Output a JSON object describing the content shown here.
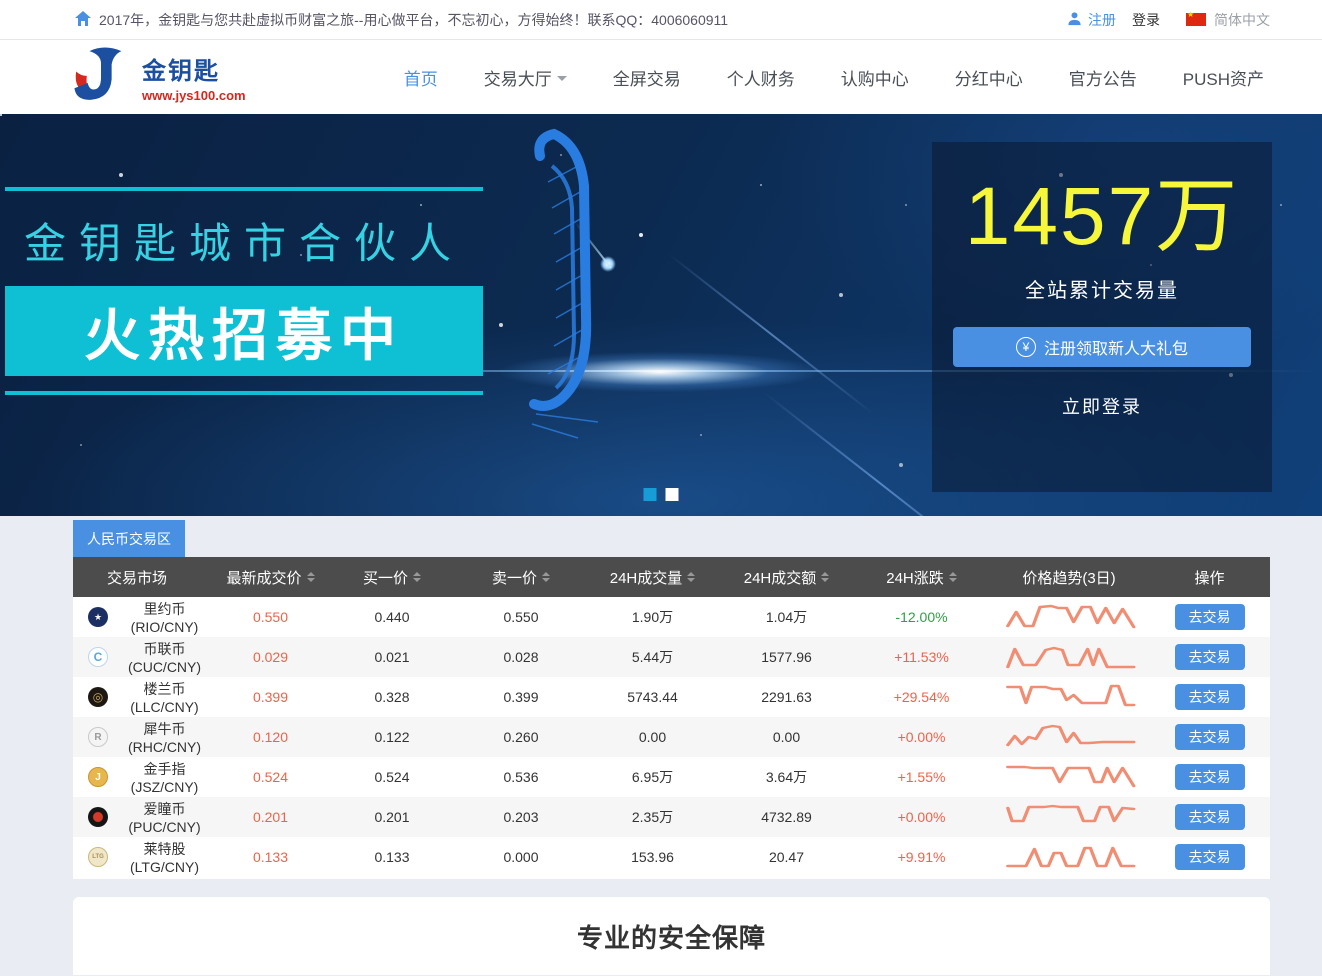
{
  "colors": {
    "accent": "#4a90e2",
    "cyan": "#0fc0d4",
    "cyan_text": "#35d2e4",
    "yellow": "#f6f63a",
    "up_orange": "#f0634a",
    "down_green": "#2fa045",
    "sparkline": "#f08d73",
    "header_bg": "#4c4c4c",
    "dot_active": "#189cd8"
  },
  "topbar": {
    "announcement": "2017年，金钥匙与您共赴虚拟币财富之旅--用心做平台，不忘初心，方得始终！联系QQ：4006060911",
    "register": "注册",
    "login": "登录",
    "language": "简体中文"
  },
  "nav": {
    "logo_title": "金钥匙",
    "logo_url": "www.jys100.com",
    "items": [
      {
        "label": "首页",
        "active": true,
        "dropdown": false
      },
      {
        "label": "交易大厅",
        "active": false,
        "dropdown": true
      },
      {
        "label": "全屏交易",
        "active": false,
        "dropdown": false
      },
      {
        "label": "个人财务",
        "active": false,
        "dropdown": false
      },
      {
        "label": "认购中心",
        "active": false,
        "dropdown": false
      },
      {
        "label": "分红中心",
        "active": false,
        "dropdown": false
      },
      {
        "label": "官方公告",
        "active": false,
        "dropdown": false
      },
      {
        "label": "PUSH资产",
        "active": false,
        "dropdown": false
      }
    ]
  },
  "banner": {
    "slogan_line1": "金钥匙城市合伙人",
    "slogan_line2": "火热招募中",
    "stat_value": "1457万",
    "stat_label": "全站累计交易量",
    "yen_symbol": "¥",
    "register_button": "注册领取新人大礼包",
    "login_link": "立即登录",
    "carousel": {
      "count": 2,
      "active_index": 0
    }
  },
  "market": {
    "tab": "人民币交易区",
    "action_label": "去交易",
    "columns": [
      {
        "label": "交易市场",
        "sortable": false
      },
      {
        "label": "最新成交价",
        "sortable": true
      },
      {
        "label": "买一价",
        "sortable": true
      },
      {
        "label": "卖一价",
        "sortable": true
      },
      {
        "label": "24H成交量",
        "sortable": true
      },
      {
        "label": "24H成交额",
        "sortable": true
      },
      {
        "label": "24H涨跌",
        "sortable": true
      },
      {
        "label": "价格趋势(3日)",
        "sortable": false
      },
      {
        "label": "操作",
        "sortable": false
      }
    ],
    "rows": [
      {
        "name": "里约币(RIO/CNY)",
        "icon": "rio",
        "icon_label": "★",
        "last": "0.550",
        "buy": "0.440",
        "sell": "0.550",
        "volume": "1.90万",
        "turnover": "1.04万",
        "change": "-12.00%",
        "direction": "down",
        "trend": [
          [
            2,
            26
          ],
          [
            8,
            12
          ],
          [
            14,
            26
          ],
          [
            20,
            26
          ],
          [
            25,
            7
          ],
          [
            33,
            6
          ],
          [
            38,
            8
          ],
          [
            44,
            8
          ],
          [
            49,
            22
          ],
          [
            55,
            7
          ],
          [
            61,
            7
          ],
          [
            66,
            23
          ],
          [
            72,
            8
          ],
          [
            78,
            23
          ],
          [
            84,
            9
          ],
          [
            92,
            27
          ]
        ]
      },
      {
        "name": "币联币(CUC/CNY)",
        "icon": "cuc",
        "icon_label": "C",
        "last": "0.029",
        "buy": "0.021",
        "sell": "0.028",
        "volume": "5.44万",
        "turnover": "1577.96",
        "change": "+11.53%",
        "direction": "up",
        "trend": [
          [
            2,
            27
          ],
          [
            7,
            9
          ],
          [
            13,
            25
          ],
          [
            22,
            25
          ],
          [
            29,
            10
          ],
          [
            35,
            8
          ],
          [
            41,
            10
          ],
          [
            45,
            25
          ],
          [
            53,
            25
          ],
          [
            59,
            9
          ],
          [
            63,
            25
          ],
          [
            67,
            9
          ],
          [
            73,
            27
          ],
          [
            82,
            27
          ],
          [
            92,
            27
          ]
        ]
      },
      {
        "name": "楼兰币(LLC/CNY)",
        "icon": "llc",
        "icon_label": "◎",
        "last": "0.399",
        "buy": "0.328",
        "sell": "0.399",
        "volume": "5743.44",
        "turnover": "2291.63",
        "change": "+29.54%",
        "direction": "up",
        "trend": [
          [
            2,
            7
          ],
          [
            11,
            7
          ],
          [
            15,
            23
          ],
          [
            19,
            7
          ],
          [
            29,
            7
          ],
          [
            34,
            9
          ],
          [
            40,
            9
          ],
          [
            44,
            20
          ],
          [
            49,
            15
          ],
          [
            55,
            23
          ],
          [
            63,
            23
          ],
          [
            72,
            23
          ],
          [
            76,
            6
          ],
          [
            81,
            6
          ],
          [
            86,
            25
          ],
          [
            92,
            25
          ]
        ]
      },
      {
        "name": "犀牛币(RHC/CNY)",
        "icon": "rhc",
        "icon_label": "R",
        "last": "0.120",
        "buy": "0.122",
        "sell": "0.260",
        "volume": "0.00",
        "turnover": "0.00",
        "change": "+0.00%",
        "direction": "up",
        "trend": [
          [
            2,
            25
          ],
          [
            7,
            16
          ],
          [
            12,
            24
          ],
          [
            17,
            17
          ],
          [
            22,
            19
          ],
          [
            27,
            8
          ],
          [
            34,
            6
          ],
          [
            39,
            7
          ],
          [
            44,
            22
          ],
          [
            49,
            13
          ],
          [
            54,
            23
          ],
          [
            60,
            23
          ],
          [
            70,
            22
          ],
          [
            80,
            22
          ],
          [
            92,
            22
          ]
        ]
      },
      {
        "name": "金手指(JSZ/CNY)",
        "icon": "jsz",
        "icon_label": "J",
        "last": "0.524",
        "buy": "0.524",
        "sell": "0.536",
        "volume": "6.95万",
        "turnover": "3.64万",
        "change": "+1.55%",
        "direction": "up",
        "trend": [
          [
            2,
            7
          ],
          [
            14,
            7
          ],
          [
            20,
            8
          ],
          [
            28,
            8
          ],
          [
            34,
            8
          ],
          [
            39,
            22
          ],
          [
            45,
            8
          ],
          [
            53,
            8
          ],
          [
            60,
            8
          ],
          [
            64,
            22
          ],
          [
            69,
            22
          ],
          [
            73,
            8
          ],
          [
            78,
            22
          ],
          [
            84,
            8
          ],
          [
            92,
            26
          ]
        ]
      },
      {
        "name": "爱瞳币(PUC/CNY)",
        "icon": "puc",
        "icon_label": "",
        "last": "0.201",
        "buy": "0.201",
        "sell": "0.203",
        "volume": "2.35万",
        "turnover": "4732.89",
        "change": "+0.00%",
        "direction": "up",
        "trend": [
          [
            2,
            8
          ],
          [
            5,
            21
          ],
          [
            13,
            21
          ],
          [
            17,
            7
          ],
          [
            28,
            7
          ],
          [
            34,
            6
          ],
          [
            40,
            7
          ],
          [
            52,
            7
          ],
          [
            56,
            21
          ],
          [
            64,
            21
          ],
          [
            68,
            7
          ],
          [
            74,
            7
          ],
          [
            78,
            21
          ],
          [
            84,
            8
          ],
          [
            92,
            9
          ]
        ]
      },
      {
        "name": "莱特股(LTG/CNY)",
        "icon": "ltg",
        "icon_label": "LTG",
        "last": "0.133",
        "buy": "0.133",
        "sell": "0.000",
        "volume": "153.96",
        "turnover": "20.47",
        "change": "+9.91%",
        "direction": "up",
        "trend": [
          [
            2,
            26
          ],
          [
            15,
            26
          ],
          [
            21,
            9
          ],
          [
            26,
            26
          ],
          [
            31,
            26
          ],
          [
            35,
            13
          ],
          [
            40,
            13
          ],
          [
            44,
            26
          ],
          [
            52,
            26
          ],
          [
            57,
            8
          ],
          [
            61,
            8
          ],
          [
            66,
            26
          ],
          [
            72,
            26
          ],
          [
            77,
            8
          ],
          [
            83,
            26
          ],
          [
            92,
            26
          ]
        ]
      }
    ]
  },
  "section": {
    "title": "专业的安全保障"
  }
}
